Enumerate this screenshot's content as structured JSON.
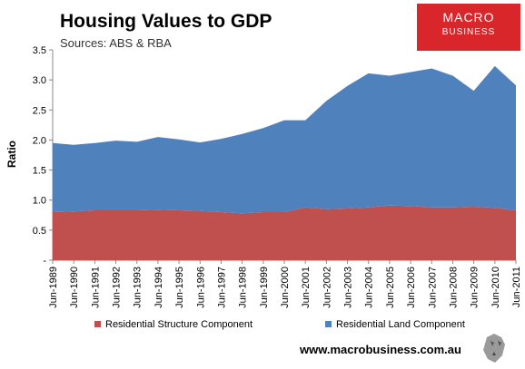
{
  "chart_data": {
    "type": "area",
    "stacked": true,
    "title": "Housing Values to GDP",
    "subtitle": "Sources: ABS & RBA",
    "ylabel": "Ratio",
    "ylim": [
      0,
      3.5
    ],
    "yticks": [
      "-",
      "0.5",
      "1.0",
      "1.5",
      "2.0",
      "2.5",
      "3.0",
      "3.5"
    ],
    "grid": false,
    "legend_position": "bottom",
    "x": [
      "Jun-1989",
      "Jun-1990",
      "Jun-1991",
      "Jun-1992",
      "Jun-1993",
      "Jun-1994",
      "Jun-1995",
      "Jun-1996",
      "Jun-1997",
      "Jun-1998",
      "Jun-1999",
      "Jun-2000",
      "Jun-2001",
      "Jun-2002",
      "Jun-2003",
      "Jun-2004",
      "Jun-2005",
      "Jun-2006",
      "Jun-2007",
      "Jun-2008",
      "Jun-2009",
      "Jun-2010",
      "Jun-2011"
    ],
    "series": [
      {
        "name": "Residential Structure Component",
        "color": "#c0504d",
        "values": [
          0.8,
          0.81,
          0.83,
          0.83,
          0.83,
          0.84,
          0.83,
          0.82,
          0.8,
          0.78,
          0.8,
          0.8,
          0.88,
          0.85,
          0.86,
          0.88,
          0.91,
          0.9,
          0.88,
          0.88,
          0.89,
          0.87,
          0.83
        ]
      },
      {
        "name": "Residential Land Component",
        "color": "#4f81bd",
        "values": [
          1.15,
          1.11,
          1.12,
          1.16,
          1.14,
          1.21,
          1.18,
          1.14,
          1.22,
          1.32,
          1.4,
          1.53,
          1.45,
          1.8,
          2.04,
          2.23,
          2.16,
          2.23,
          2.31,
          2.19,
          1.93,
          2.36,
          2.08
        ]
      }
    ]
  },
  "logo": {
    "line1": "MACRO",
    "line2": "BUSINESS",
    "color": "#d9262b"
  },
  "footer": "www.macrobusiness.com.au"
}
